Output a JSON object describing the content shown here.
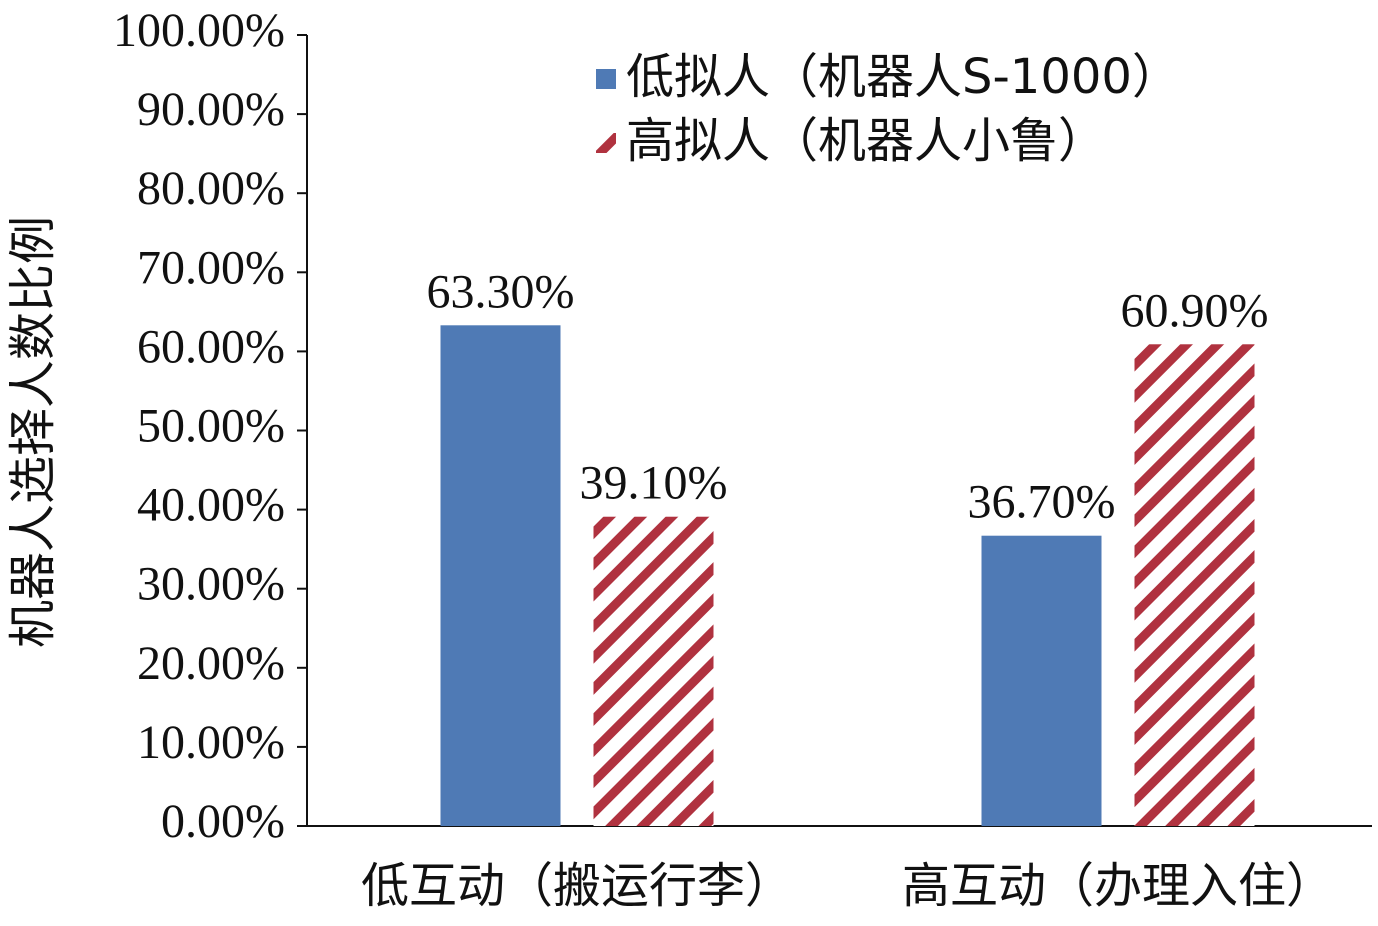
{
  "chart_data": {
    "type": "bar",
    "categories": [
      "低互动（搬运行李）",
      "高互动（办理入住）"
    ],
    "series": [
      {
        "name": "低拟人（机器人S-1000）",
        "values": [
          63.3,
          36.7
        ],
        "data_labels": [
          "63.30%",
          "36.70%"
        ],
        "color": "#4f7ab5",
        "pattern": "solid"
      },
      {
        "name": "高拟人（机器人小鲁）",
        "values": [
          39.1,
          60.9
        ],
        "data_labels": [
          "39.10%",
          "60.90%"
        ],
        "color": "#b0323f",
        "pattern": "diagonal-stripes"
      }
    ],
    "ylabel": "机器人选择人数比例",
    "xlabel": "",
    "ylim": [
      0,
      100
    ],
    "yticks": [
      0,
      10,
      20,
      30,
      40,
      50,
      60,
      70,
      80,
      90,
      100
    ],
    "ytick_labels": [
      "0.00%",
      "10.00%",
      "20.00%",
      "30.00%",
      "40.00%",
      "50.00%",
      "60.00%",
      "70.00%",
      "80.00%",
      "90.00%",
      "100.00%"
    ],
    "legend_position": "top-right",
    "grid": false
  }
}
